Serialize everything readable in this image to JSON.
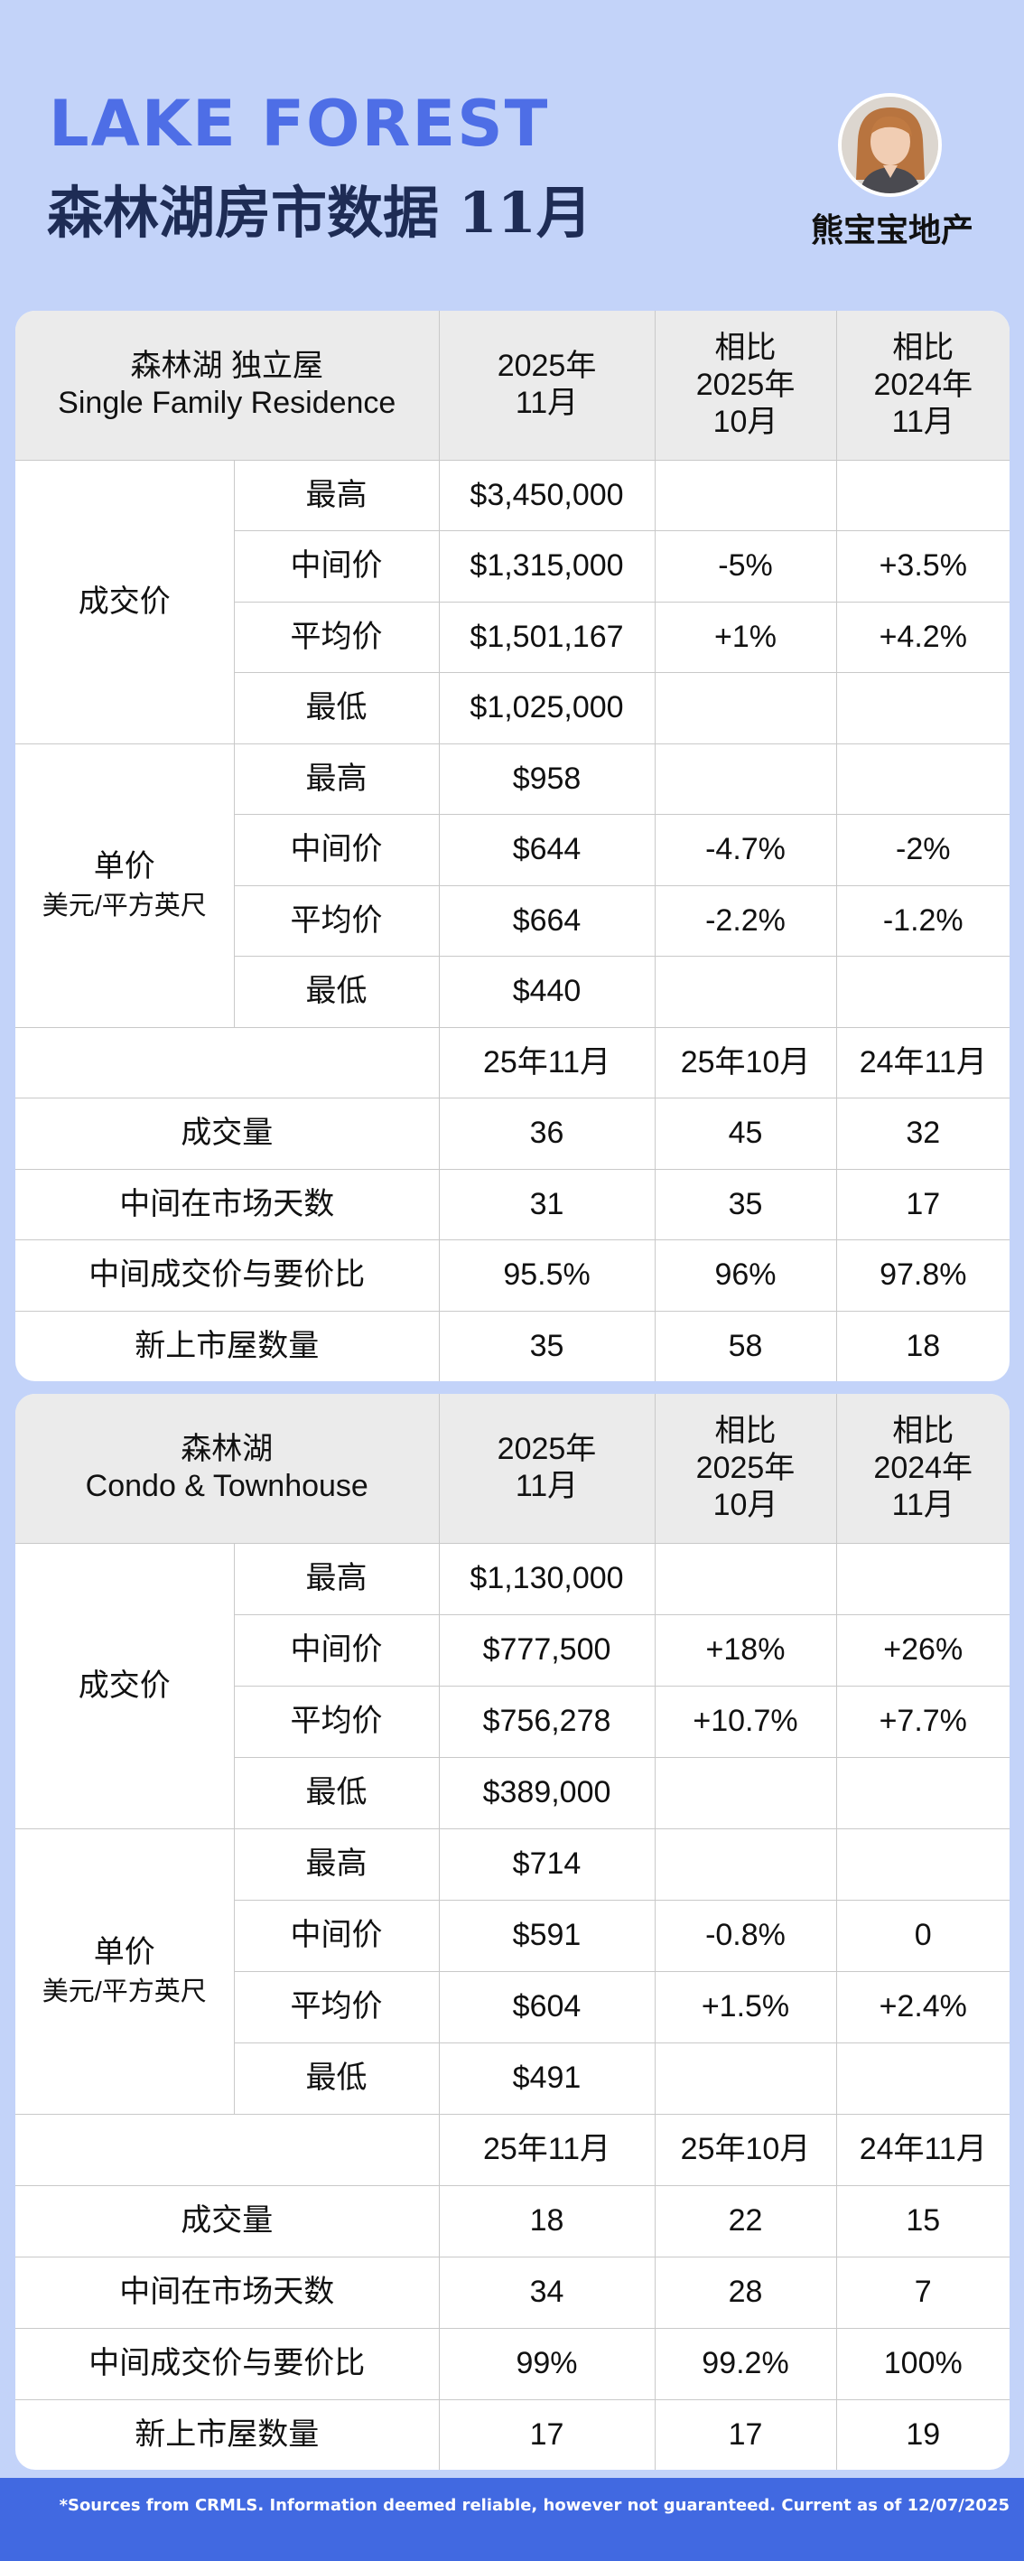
{
  "header": {
    "title_en": "LAKE FOREST",
    "title_cn": "森林湖房市数据 11月",
    "agent_name": "熊宝宝地产",
    "avatar_icon": "agent-portrait"
  },
  "colors": {
    "positive": "#1b8a2b",
    "negative": "#db3b24",
    "accent": "#4e6ee6",
    "background": "#c3d3f9"
  },
  "sfr": {
    "header": {
      "title_line1": "森林湖  独立屋",
      "title_line2": "Single Family Residence",
      "col1_line1": "2025年",
      "col1_line2": "11月",
      "col2_line1": "相比",
      "col2_line2": "2025年",
      "col2_line3": "10月",
      "col3_line1": "相比",
      "col3_line2": "2024年",
      "col3_line3": "11月"
    },
    "price": {
      "group": "成交价",
      "rows": [
        {
          "label": "最高",
          "value": "$3,450,000",
          "mom": "",
          "yoy": ""
        },
        {
          "label": "中间价",
          "value": "$1,315,000",
          "mom": "-5%",
          "yoy": "+3.5%"
        },
        {
          "label": "平均价",
          "value": "$1,501,167",
          "mom": "+1%",
          "yoy": "+4.2%"
        },
        {
          "label": "最低",
          "value": "$1,025,000",
          "mom": "",
          "yoy": ""
        }
      ]
    },
    "unit": {
      "group": "单价",
      "group_sub": "美元/平方英尺",
      "rows": [
        {
          "label": "最高",
          "value": "$958",
          "mom": "",
          "yoy": ""
        },
        {
          "label": "中间价",
          "value": "$644",
          "mom": "-4.7%",
          "yoy": "-2%"
        },
        {
          "label": "平均价",
          "value": "$664",
          "mom": "-2.2%",
          "yoy": "-1.2%"
        },
        {
          "label": "最低",
          "value": "$440",
          "mom": "",
          "yoy": ""
        }
      ]
    },
    "period_header": {
      "c1": "25年11月",
      "c2": "25年10月",
      "c3": "24年11月"
    },
    "stats": [
      {
        "label": "成交量",
        "c1": "36",
        "c2": "45",
        "c3": "32"
      },
      {
        "label": "中间在市场天数",
        "c1": "31",
        "c2": "35",
        "c3": "17"
      },
      {
        "label": "中间成交价与要价比",
        "c1": "95.5%",
        "c2": "96%",
        "c3": "97.8%"
      },
      {
        "label": "新上市屋数量",
        "c1": "35",
        "c2": "58",
        "c3": "18"
      }
    ]
  },
  "condo": {
    "header": {
      "title_line1": "森林湖",
      "title_line2": "Condo & Townhouse",
      "col1_line1": "2025年",
      "col1_line2": "11月",
      "col2_line1": "相比",
      "col2_line2": "2025年",
      "col2_line3": "10月",
      "col3_line1": "相比",
      "col3_line2": "2024年",
      "col3_line3": "11月"
    },
    "price": {
      "group": "成交价",
      "rows": [
        {
          "label": "最高",
          "value": "$1,130,000",
          "mom": "",
          "yoy": ""
        },
        {
          "label": "中间价",
          "value": "$777,500",
          "mom": "+18%",
          "yoy": "+26%"
        },
        {
          "label": "平均价",
          "value": "$756,278",
          "mom": "+10.7%",
          "yoy": "+7.7%"
        },
        {
          "label": "最低",
          "value": "$389,000",
          "mom": "",
          "yoy": ""
        }
      ]
    },
    "unit": {
      "group": "单价",
      "group_sub": "美元/平方英尺",
      "rows": [
        {
          "label": "最高",
          "value": "$714",
          "mom": "",
          "yoy": ""
        },
        {
          "label": "中间价",
          "value": "$591",
          "mom": "-0.8%",
          "yoy": "0"
        },
        {
          "label": "平均价",
          "value": "$604",
          "mom": "+1.5%",
          "yoy": "+2.4%"
        },
        {
          "label": "最低",
          "value": "$491",
          "mom": "",
          "yoy": ""
        }
      ]
    },
    "period_header": {
      "c1": "25年11月",
      "c2": "25年10月",
      "c3": "24年11月"
    },
    "stats": [
      {
        "label": "成交量",
        "c1": "18",
        "c2": "22",
        "c3": "15"
      },
      {
        "label": "中间在市场天数",
        "c1": "34",
        "c2": "28",
        "c3": "7"
      },
      {
        "label": "中间成交价与要价比",
        "c1": "99%",
        "c2": "99.2%",
        "c3": "100%"
      },
      {
        "label": "新上市屋数量",
        "c1": "17",
        "c2": "17",
        "c3": "19"
      }
    ]
  },
  "footer": {
    "text": "*Sources from CRMLS. Information deemed reliable, however not guaranteed. Current as of 12/07/2025"
  }
}
